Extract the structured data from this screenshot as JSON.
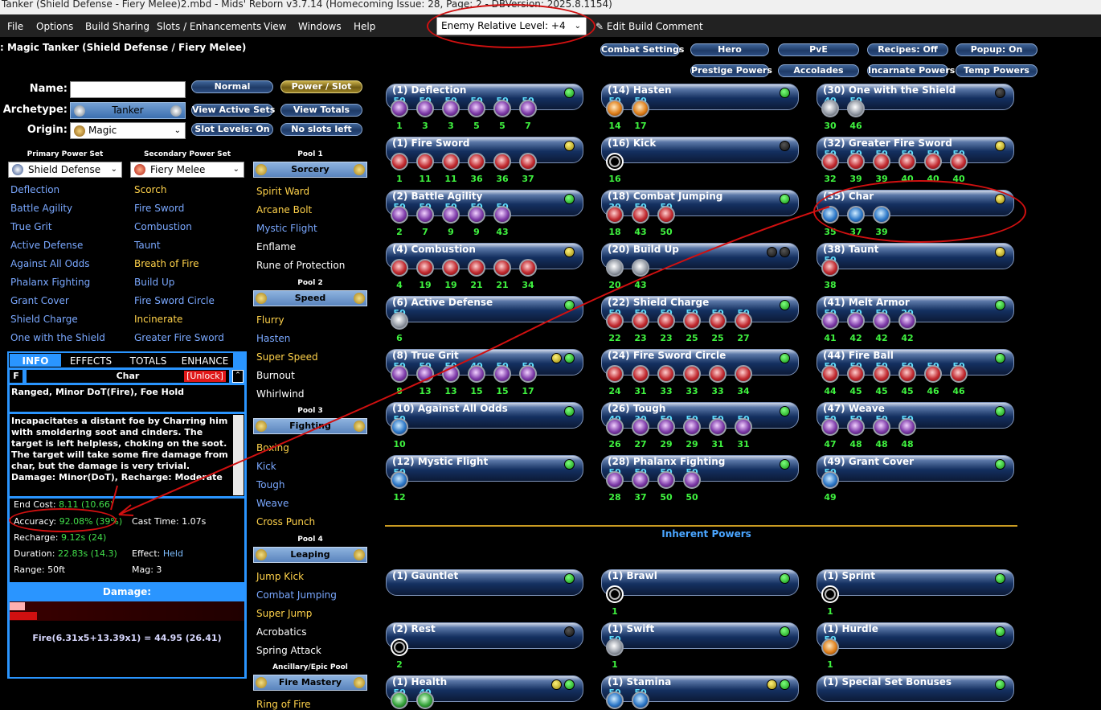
{
  "window": {
    "title": "Tanker (Shield Defense - Fiery Melee)2.mbd - Mids' Reborn v3.7.14  (Homecoming Issue: 28, Page: 2 - DBVersion: 2025.8.1154)"
  },
  "menu": [
    "File",
    "Options",
    "Build Sharing",
    "Slots / Enhancements",
    "View",
    "Windows",
    "Help"
  ],
  "toolbar": {
    "enemy_level": "Enemy Relative Level: +4",
    "edit_comment": "Edit Build Comment"
  },
  "build": {
    "header": ": Magic Tanker (Shield Defense / Fiery Melee)",
    "name_label": "Name:",
    "archetype_label": "Archetype:",
    "origin_label": "Origin:",
    "archetype": "Tanker",
    "origin": "Magic",
    "name_value": ""
  },
  "controls": {
    "normal": "Normal",
    "power_slot": "Power / Slot",
    "view_active_sets": "View Active Sets",
    "view_totals": "View Totals",
    "slot_levels": "Slot Levels: On",
    "no_slots_left": "No slots left"
  },
  "top_buttons": [
    "Combat Settings",
    "Hero",
    "PvE",
    "Recipes: Off",
    "Popup: On",
    "Prestige Powers",
    "Accolades",
    "Incarnate Powers",
    "Temp Powers"
  ],
  "primary": {
    "header": "Primary Power Set",
    "name": "Shield Defense",
    "powers": [
      "Deflection",
      "Battle Agility",
      "True Grit",
      "Active Defense",
      "Against All Odds",
      "Phalanx Fighting",
      "Grant Cover",
      "Shield Charge",
      "One with the Shield"
    ]
  },
  "secondary": {
    "header": "Secondary Power Set",
    "name": "Fiery Melee",
    "powers": [
      "Scorch",
      "Fire Sword",
      "Combustion",
      "Taunt",
      "Breath of Fire",
      "Build Up",
      "Fire Sword Circle",
      "Incinerate",
      "Greater Fire Sword"
    ]
  },
  "pools": [
    {
      "header": "Pool 1",
      "name": "Sorcery",
      "powers": [
        "Spirit Ward",
        "Arcane Bolt",
        "Mystic Flight",
        "Enflame",
        "Rune of Protection"
      ]
    },
    {
      "header": "Pool 2",
      "name": "Speed",
      "powers": [
        "Flurry",
        "Hasten",
        "Super Speed",
        "Burnout",
        "Whirlwind"
      ]
    },
    {
      "header": "Pool 3",
      "name": "Fighting",
      "powers": [
        "Boxing",
        "Kick",
        "Tough",
        "Weave",
        "Cross Punch"
      ]
    },
    {
      "header": "Pool 4",
      "name": "Leaping",
      "powers": [
        "Jump Kick",
        "Combat Jumping",
        "Super Jump",
        "Acrobatics",
        "Spring Attack"
      ]
    },
    {
      "header": "Ancillary/Epic Pool",
      "name": "Fire Mastery",
      "powers": [
        "Ring of Fire"
      ]
    }
  ],
  "info": {
    "tabs": [
      "INFO",
      "EFFECTS",
      "TOTALS",
      "ENHANCE"
    ],
    "f_label": "F",
    "power_name": "Char",
    "unlock": "[Unlock]",
    "short_desc": "Ranged, Minor DoT(Fire), Foe Hold",
    "long_desc": "Incapacitates a distant foe by Charring him with smoldering soot and cinders. The target is left helpless, choking on the soot. The target will take some fire damage from char, but the damage is very trivial. Damage: Minor(DoT), Recharge: Moderate",
    "end_cost_label": "End Cost:",
    "end_cost": "8.11 (10.66)",
    "cast_time_label": "Cast Time:",
    "cast_time": "1.07s",
    "accuracy_label": "Accuracy:",
    "accuracy": "92.08% (39%)",
    "recharge_label": "Recharge:",
    "recharge": "9.12s (24)",
    "duration_label": "Duration:",
    "duration": "22.83s (14.3)",
    "effect_label": "Effect:",
    "effect": "Held",
    "range_label": "Range:",
    "range": "50ft",
    "mag_label": "Mag:",
    "mag": "3",
    "damage_title": "Damage:",
    "damage_formula": "Fire(6.31x5+13.39x1) = 44.95 (26.41)",
    "damage_bar_fraction": 0.116
  },
  "build_powers": [
    {
      "name": "(1) Deflection",
      "slots": [
        [
          "50",
          "1"
        ],
        [
          "50",
          "3"
        ],
        [
          "50",
          "3"
        ],
        [
          "50",
          "5"
        ],
        [
          "50",
          "5"
        ],
        [
          "50",
          "7"
        ]
      ]
    },
    {
      "name": "(14) Hasten",
      "slots": [
        [
          "50",
          "14"
        ],
        [
          "50",
          "17"
        ]
      ]
    },
    {
      "name": "(30) One with the Shield",
      "slots": [
        [
          "40",
          "30"
        ],
        [
          "50",
          "46"
        ]
      ]
    },
    {
      "name": "(1) Fire Sword",
      "slots": [
        [
          "",
          "1"
        ],
        [
          "",
          "11"
        ],
        [
          "",
          "11"
        ],
        [
          "",
          "36"
        ],
        [
          "",
          "36"
        ],
        [
          "",
          "37"
        ]
      ]
    },
    {
      "name": "(16) Kick",
      "slots": [
        [
          "",
          "16"
        ]
      ]
    },
    {
      "name": "(32) Greater Fire Sword",
      "slots": [
        [
          "50",
          "32"
        ],
        [
          "50",
          "39"
        ],
        [
          "50",
          "39"
        ],
        [
          "50",
          "40"
        ],
        [
          "50",
          "40"
        ],
        [
          "50",
          "40"
        ]
      ]
    },
    {
      "name": "(2) Battle Agility",
      "slots": [
        [
          "50",
          "2"
        ],
        [
          "50",
          "7"
        ],
        [
          "50",
          "9"
        ],
        [
          "50",
          "9"
        ],
        [
          "50",
          "43"
        ]
      ]
    },
    {
      "name": "(18) Combat Jumping",
      "slots": [
        [
          "30",
          "18"
        ],
        [
          "50",
          "43"
        ],
        [
          "50",
          "50"
        ]
      ]
    },
    {
      "name": "(35) Char",
      "slots": [
        [
          "",
          "35"
        ],
        [
          "",
          "37"
        ],
        [
          "",
          "39"
        ]
      ]
    },
    {
      "name": "(4) Combustion",
      "slots": [
        [
          "",
          "4"
        ],
        [
          "",
          "19"
        ],
        [
          "",
          "19"
        ],
        [
          "",
          "21"
        ],
        [
          "",
          "21"
        ],
        [
          "",
          "34"
        ]
      ]
    },
    {
      "name": "(20) Build Up",
      "slots": [
        [
          "",
          "20"
        ],
        [
          "",
          "43"
        ]
      ]
    },
    {
      "name": "(38) Taunt",
      "slots": [
        [
          "50",
          "38"
        ]
      ]
    },
    {
      "name": "(6) Active Defense",
      "slots": [
        [
          "50",
          "6"
        ]
      ]
    },
    {
      "name": "(22) Shield Charge",
      "slots": [
        [
          "50",
          "22"
        ],
        [
          "50",
          "23"
        ],
        [
          "50",
          "23"
        ],
        [
          "50",
          "25"
        ],
        [
          "50",
          "25"
        ],
        [
          "50",
          "27"
        ]
      ]
    },
    {
      "name": "(41) Melt Armor",
      "slots": [
        [
          "50",
          "41"
        ],
        [
          "50",
          "42"
        ],
        [
          "50",
          "42"
        ],
        [
          "20",
          "42"
        ]
      ]
    },
    {
      "name": "(8) True Grit",
      "slots": [
        [
          "50",
          "8"
        ],
        [
          "50",
          "13"
        ],
        [
          "50",
          "13"
        ],
        [
          "40",
          "15"
        ],
        [
          "50",
          "15"
        ],
        [
          "50",
          "17"
        ]
      ]
    },
    {
      "name": "(24) Fire Sword Circle",
      "slots": [
        [
          "",
          "24"
        ],
        [
          "",
          "31"
        ],
        [
          "",
          "33"
        ],
        [
          "",
          "33"
        ],
        [
          "",
          "33"
        ],
        [
          "",
          "34"
        ]
      ]
    },
    {
      "name": "(44) Fire Ball",
      "slots": [
        [
          "50",
          "44"
        ],
        [
          "50",
          "45"
        ],
        [
          "50",
          "45"
        ],
        [
          "50",
          "45"
        ],
        [
          "50",
          "46"
        ],
        [
          "50",
          "46"
        ]
      ]
    },
    {
      "name": "(10) Against All Odds",
      "slots": [
        [
          "50",
          "10"
        ]
      ]
    },
    {
      "name": "(26) Tough",
      "slots": [
        [
          "40",
          "26"
        ],
        [
          "30",
          "27"
        ],
        [
          "50",
          "29"
        ],
        [
          "50",
          "29"
        ],
        [
          "50",
          "31"
        ],
        [
          "50",
          "31"
        ]
      ]
    },
    {
      "name": "(47) Weave",
      "slots": [
        [
          "50",
          "47"
        ],
        [
          "50",
          "48"
        ],
        [
          "50",
          "48"
        ],
        [
          "50",
          "48"
        ]
      ]
    },
    {
      "name": "(12) Mystic Flight",
      "slots": [
        [
          "50",
          "12"
        ]
      ]
    },
    {
      "name": "(28) Phalanx Fighting",
      "slots": [
        [
          "50",
          "28"
        ],
        [
          "50",
          "37"
        ],
        [
          "50",
          "50"
        ],
        [
          "50",
          "50"
        ]
      ]
    },
    {
      "name": "(49) Grant Cover",
      "slots": [
        [
          "50",
          "49"
        ]
      ]
    }
  ],
  "inherent": {
    "title": "Inherent Powers",
    "powers": [
      {
        "name": "(1) Gauntlet",
        "slots": []
      },
      {
        "name": "(1) Brawl",
        "slots": [
          [
            "",
            "1"
          ]
        ]
      },
      {
        "name": "(1) Sprint",
        "slots": [
          [
            "",
            "1"
          ]
        ]
      },
      {
        "name": "(2) Rest",
        "slots": [
          [
            "",
            "2"
          ]
        ]
      },
      {
        "name": "(1) Swift",
        "slots": [
          [
            "50",
            "1"
          ]
        ]
      },
      {
        "name": "(1) Hurdle",
        "slots": [
          [
            "50",
            "1"
          ]
        ]
      },
      {
        "name": "(1) Health",
        "slots": [
          [
            "50",
            ""
          ],
          [
            "40",
            ""
          ]
        ]
      },
      {
        "name": "(1) Stamina",
        "slots": [
          [
            "50",
            ""
          ],
          [
            "50",
            ""
          ]
        ]
      },
      {
        "name": "(1) Special Set Bonuses",
        "slots": []
      }
    ]
  },
  "colors": {
    "accent_blue": "#2a95ff",
    "level_green": "#3ff23f",
    "enhance_cyan": "#5ee0ff",
    "annotation_red": "#d01010"
  }
}
